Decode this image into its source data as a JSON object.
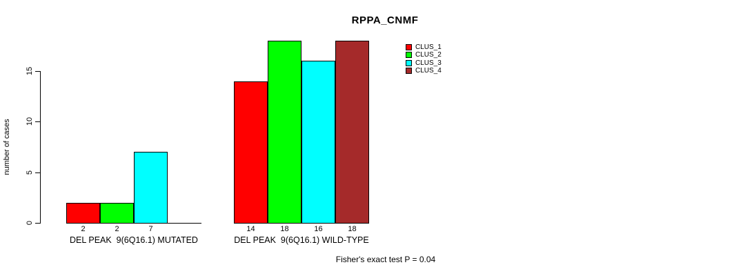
{
  "chart_data": {
    "type": "bar",
    "title": "RPPA_CNMF",
    "ylabel": "number of cases",
    "xlabel": "",
    "ylim": [
      0,
      18
    ],
    "yticks": [
      0,
      5,
      10,
      15
    ],
    "grid": false,
    "background": "#ffffff",
    "axis_color": "#000000",
    "categories": [
      "DEL PEAK  9(6Q16.1) MUTATED",
      "DEL PEAK  9(6Q16.1) WILD-TYPE"
    ],
    "series": [
      {
        "name": "CLUS_1",
        "color": "#ff0000",
        "values": [
          2,
          14
        ]
      },
      {
        "name": "CLUS_2",
        "color": "#00ff00",
        "values": [
          2,
          18
        ]
      },
      {
        "name": "CLUS_3",
        "color": "#00ffff",
        "values": [
          7,
          16
        ]
      },
      {
        "name": "CLUS_4",
        "color": "#a52a2a",
        "values": [
          0,
          18
        ]
      }
    ],
    "bar_value_labels": [
      [
        "2",
        "2",
        "7",
        ""
      ],
      [
        "14",
        "18",
        "16",
        "18"
      ]
    ],
    "legend_position": "top-right",
    "annotation": "Fisher's exact test P = 0.04"
  }
}
